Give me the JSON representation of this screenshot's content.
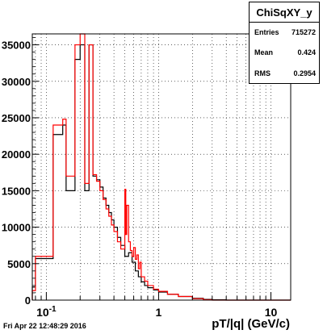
{
  "chart_data": {
    "type": "histogram-step",
    "title": "ChiSqXY_y",
    "xlabel": "pT/|q| (GeV/c)",
    "ylabel": "",
    "xscale": "log",
    "xlim": [
      0.075,
      15
    ],
    "ylim": [
      0,
      36500
    ],
    "grid": true,
    "legend": "top-right",
    "x_tick_labels": [
      {
        "value": 0.1,
        "label": "10^-1"
      },
      {
        "value": 1,
        "label": "1"
      },
      {
        "value": 10,
        "label": "10"
      }
    ],
    "y_tick_labels": [
      "0",
      "5000",
      "10000",
      "15000",
      "20000",
      "25000",
      "30000",
      "35000"
    ],
    "y_tick_values": [
      0,
      5000,
      10000,
      15000,
      20000,
      25000,
      30000,
      35000
    ],
    "series": [
      {
        "color": "#000000",
        "edges": [
          0.075,
          0.08,
          0.1,
          0.115,
          0.14,
          0.15,
          0.18,
          0.2,
          0.22,
          0.24,
          0.26,
          0.28,
          0.3,
          0.32,
          0.34,
          0.36,
          0.38,
          0.4,
          0.43,
          0.46,
          0.5,
          0.54,
          0.58,
          0.62,
          0.66,
          0.7,
          0.75,
          0.8,
          0.9,
          1.0,
          1.2,
          1.5,
          2.0,
          2.5,
          3.0,
          4.0,
          15
        ],
        "values": [
          1800,
          5700,
          5700,
          22700,
          24000,
          15000,
          33000,
          35000,
          15000,
          35000,
          17000,
          16500,
          15500,
          14000,
          13000,
          12000,
          11000,
          10000,
          8600,
          7500,
          6000,
          6500,
          5200,
          4000,
          3200,
          2500,
          2000,
          1700,
          1400,
          1100,
          800,
          500,
          250,
          100,
          40,
          0
        ]
      },
      {
        "color": "#ff0000",
        "edges": [
          0.075,
          0.08,
          0.1,
          0.115,
          0.14,
          0.15,
          0.18,
          0.2,
          0.22,
          0.24,
          0.26,
          0.28,
          0.3,
          0.32,
          0.34,
          0.36,
          0.38,
          0.4,
          0.43,
          0.46,
          0.5,
          0.51,
          0.52,
          0.54,
          0.56,
          0.58,
          0.6,
          0.62,
          0.64,
          0.66,
          0.68,
          0.7,
          0.75,
          0.8,
          0.9,
          1.0,
          1.2,
          1.5,
          2.0,
          2.5,
          3.0,
          15
        ],
        "values": [
          1300,
          6000,
          6000,
          24000,
          24800,
          17000,
          35000,
          36500,
          16000,
          35000,
          17200,
          16300,
          15000,
          13800,
          12500,
          11500,
          10300,
          9400,
          8000,
          7000,
          15200,
          9000,
          13000,
          8000,
          6800,
          6000,
          7200,
          5600,
          6200,
          4300,
          5200,
          3200,
          2600,
          2000,
          1500,
          1200,
          800,
          500,
          200,
          60,
          0
        ]
      }
    ]
  },
  "stats_box": {
    "title": "ChiSqXY_y",
    "rows": [
      {
        "label": "Entries",
        "value": "715272"
      },
      {
        "label": "Mean",
        "value": "0.424"
      },
      {
        "label": "RMS",
        "value": "0.2954"
      }
    ]
  },
  "footer": "Fri Apr 22 12:48:29 2016"
}
